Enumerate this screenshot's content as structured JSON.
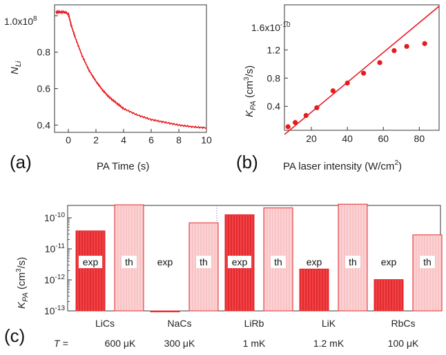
{
  "chart_data": [
    {
      "panel": "(a)",
      "type": "line",
      "xlabel": "PA Time (s)",
      "ylabel_main": "N",
      "ylabel_sub": "Li",
      "xlim": [
        -1,
        10
      ],
      "ylim": [
        0.36,
        1.06
      ],
      "xticks": [
        "0",
        "2",
        "4",
        "6",
        "8",
        "10"
      ],
      "yticks": [
        "0.4",
        "0.6",
        "0.8"
      ],
      "ytop_label": "1.0x10",
      "ytop_exp": "8",
      "color": "#e8191f",
      "series": [
        {
          "x": [
            -0.9,
            -0.6,
            -0.3,
            0.0,
            0.2,
            0.5,
            1.0,
            1.5,
            2.0,
            2.5,
            3.0,
            3.5,
            4.0,
            5.0,
            6.0,
            7.0,
            8.0,
            9.0,
            10.0
          ],
          "y": [
            1.02,
            1.02,
            1.02,
            1.01,
            0.95,
            0.88,
            0.78,
            0.7,
            0.64,
            0.59,
            0.55,
            0.52,
            0.49,
            0.455,
            0.43,
            0.415,
            0.4,
            0.39,
            0.385
          ]
        }
      ]
    },
    {
      "panel": "(b)",
      "type": "scatter",
      "xlabel": "PA laser intensity (W/cm",
      "xlabel_sup": "2",
      "xlabel_end": ")",
      "ylabel_main": "K",
      "ylabel_sub": "PA",
      "ylabel_rest": " (cm",
      "ylabel_sup": "3",
      "ylabel_end": "/s)",
      "xlim": [
        5,
        91
      ],
      "ylim": [
        0.06,
        1.84
      ],
      "xticks": [
        "20",
        "40",
        "60",
        "80"
      ],
      "yticks": [
        "0.4",
        "0.8",
        "1.2"
      ],
      "ytop_label": "1.6x10",
      "ytop_exp": "-10",
      "color": "#e8191f",
      "points": {
        "x": [
          7,
          11,
          17,
          23,
          32,
          40,
          49,
          58,
          66,
          73,
          83
        ],
        "y": [
          0.11,
          0.17,
          0.27,
          0.38,
          0.62,
          0.73,
          0.87,
          1.02,
          1.19,
          1.25,
          1.29
        ]
      },
      "fit_line": {
        "x": [
          5,
          91
        ],
        "y": [
          0.0,
          1.82
        ]
      }
    },
    {
      "panel": "(c)",
      "type": "bar",
      "ylabel_main": "K",
      "ylabel_sub": "PA",
      "ylabel_rest": " (cm",
      "ylabel_sup": "3",
      "ylabel_end": "/s)",
      "log_scale": true,
      "ylim_exp": [
        -13,
        -9.6
      ],
      "yticks": [
        {
          "base": "10",
          "exp": "-10"
        },
        {
          "base": "10",
          "exp": "-11"
        },
        {
          "base": "10",
          "exp": "-12"
        },
        {
          "base": "10",
          "exp": "-13"
        }
      ],
      "categories": [
        "LiCs",
        "NaCs",
        "LiRb",
        "LiK",
        "RbCs"
      ],
      "temperature_prefix": "T  =",
      "temperatures": [
        "600 μK",
        "300 μK",
        "1 mK",
        "1.2 mK",
        "100 μK"
      ],
      "series": [
        {
          "name": "exp",
          "log10_values": [
            -10.42,
            -13.0,
            -9.9,
            -11.65,
            -11.99
          ],
          "color": "#e52a2e"
        },
        {
          "name": "th",
          "log10_values": [
            -9.58,
            -10.16,
            -9.68,
            -9.56,
            -10.55
          ],
          "color": "#f9c3c5"
        }
      ]
    }
  ]
}
